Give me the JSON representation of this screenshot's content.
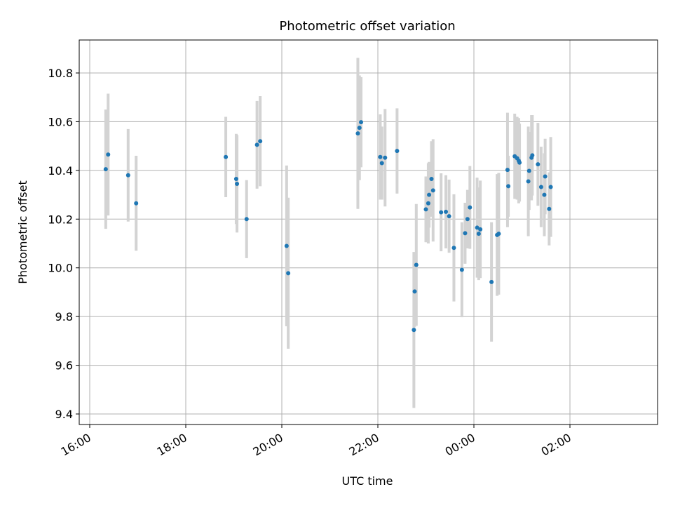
{
  "chart_data": {
    "type": "scatter",
    "title": "Photometric offset variation",
    "xlabel": "UTC time",
    "ylabel": "Photometric offset",
    "grid": true,
    "x_ticks": [
      "16:00",
      "18:00",
      "20:00",
      "22:00",
      "00:00",
      "02:00"
    ],
    "y_ticks": [
      "9.4",
      "9.6",
      "9.8",
      "10.0",
      "10.2",
      "10.4",
      "10.6",
      "10.8"
    ],
    "colors": {
      "point": "#1f77b4",
      "errorbar": "#d3d3d3",
      "grid": "#b0b0b0"
    },
    "series": [
      {
        "x": [
          "16:20",
          "16:23",
          "16:48",
          "16:58",
          "18:50",
          "19:03",
          "19:04",
          "19:16",
          "19:29",
          "19:33",
          "20:06",
          "20:08",
          "21:35",
          "21:37",
          "21:39",
          "22:03",
          "22:05",
          "22:09",
          "22:24",
          "22:45",
          "22:46",
          "22:48",
          "23:00",
          "23:03",
          "23:04",
          "23:07",
          "23:09",
          "23:19",
          "23:25",
          "23:29",
          "23:35",
          "23:45",
          "23:49",
          "23:52",
          "23:55",
          "00:04",
          "00:06",
          "00:08",
          "00:22",
          "00:29",
          "00:31",
          "00:42",
          "00:43",
          "00:51",
          "00:54",
          "00:56",
          "00:57",
          "01:08",
          "01:09",
          "01:12",
          "01:13",
          "01:20",
          "01:24",
          "01:28",
          "01:29",
          "01:34",
          "01:36"
        ],
        "y": [
          10.405,
          10.465,
          10.38,
          10.265,
          10.455,
          10.365,
          10.345,
          10.2,
          10.505,
          10.52,
          10.09,
          9.978,
          10.552,
          10.575,
          10.598,
          10.455,
          10.43,
          10.452,
          10.48,
          9.745,
          9.903,
          10.012,
          10.24,
          10.265,
          10.3,
          10.365,
          10.318,
          10.228,
          10.23,
          10.212,
          10.082,
          9.992,
          10.142,
          10.2,
          10.248,
          10.165,
          10.14,
          10.158,
          9.942,
          10.135,
          10.14,
          10.402,
          10.335,
          10.458,
          10.45,
          10.44,
          10.432,
          10.355,
          10.398,
          10.452,
          10.462,
          10.425,
          10.332,
          10.3,
          10.375,
          10.242,
          10.332
        ],
        "err": [
          0.245,
          0.25,
          0.19,
          0.195,
          0.165,
          0.185,
          0.2,
          0.16,
          0.18,
          0.185,
          0.33,
          0.31,
          0.31,
          0.215,
          0.185,
          0.175,
          0.15,
          0.2,
          0.175,
          0.32,
          0.145,
          0.25,
          0.135,
          0.165,
          0.135,
          0.155,
          0.21,
          0.16,
          0.15,
          0.15,
          0.22,
          0.195,
          0.125,
          0.12,
          0.17,
          0.205,
          0.19,
          0.2,
          0.245,
          0.25,
          0.25,
          0.235,
          0.125,
          0.175,
          0.17,
          0.175,
          0.16,
          0.225,
          0.16,
          0.175,
          0.165,
          0.17,
          0.165,
          0.17,
          0.155,
          0.15,
          0.205
        ]
      }
    ]
  }
}
